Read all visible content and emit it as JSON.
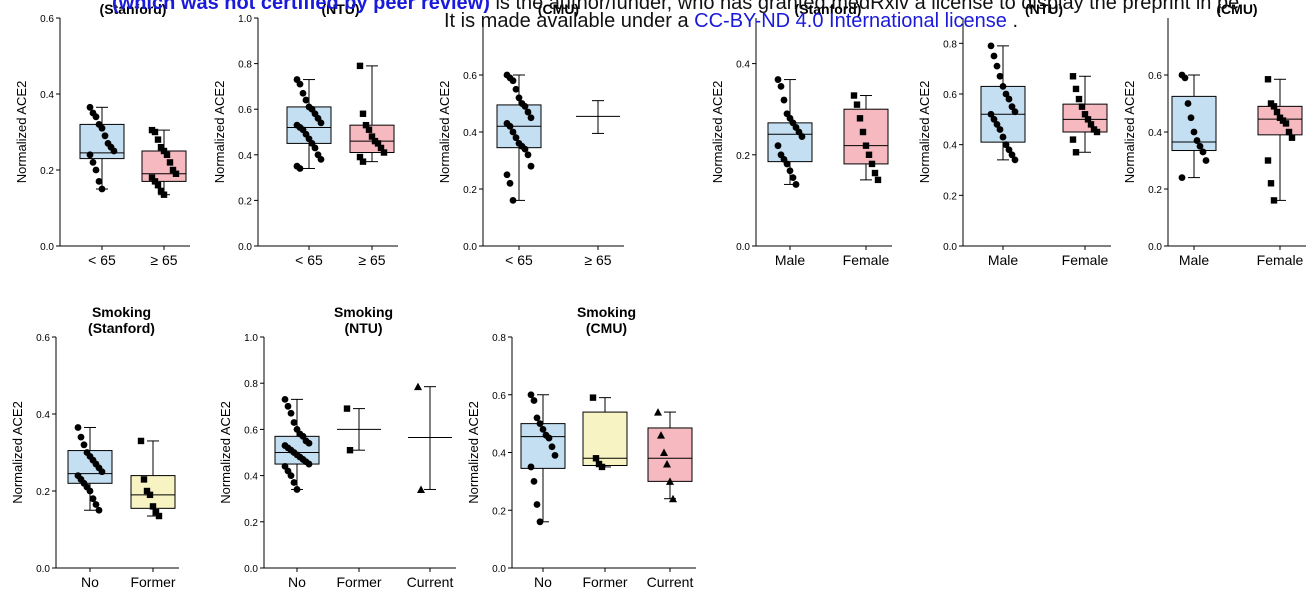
{
  "banner": {
    "line1_bold": "(which was not certified by peer review)",
    "line1_rest": " is the author/funder, who has granted medRxiv a license to display the preprint in pe",
    "line2_pre": "It is made available under a ",
    "line2_link": "CC-BY-ND 4.0 International license",
    "line2_post": " ."
  },
  "colors": {
    "blue": "#c5dff2",
    "pink": "#f5b9bf",
    "yellow": "#f7f3c2",
    "stroke": "#000000"
  },
  "chart_data": [
    {
      "type": "box",
      "title": "(Stanford)",
      "ylabel": "Normalized ACE2",
      "ylim": [
        0,
        0.6
      ],
      "yticks": [
        0.0,
        0.2,
        0.4,
        0.6
      ],
      "ytick_labels": [
        "0.0",
        "0.2",
        "0.4",
        "0.6"
      ],
      "categories": [
        "< 65",
        "≥ 65"
      ],
      "groups": [
        {
          "color": "blue",
          "marker": "circle",
          "whisker": [
            0.15,
            0.365
          ],
          "box": [
            0.23,
            0.32
          ],
          "median": 0.245,
          "points": [
            0.365,
            0.35,
            0.34,
            0.32,
            0.31,
            0.29,
            0.27,
            0.26,
            0.25,
            0.24,
            0.22,
            0.2,
            0.17,
            0.15
          ]
        },
        {
          "color": "pink",
          "marker": "square",
          "whisker": [
            0.135,
            0.305
          ],
          "box": [
            0.17,
            0.25
          ],
          "median": 0.19,
          "points": [
            0.305,
            0.3,
            0.28,
            0.26,
            0.25,
            0.24,
            0.22,
            0.2,
            0.19,
            0.18,
            0.17,
            0.16,
            0.145,
            0.135
          ]
        }
      ]
    },
    {
      "type": "box",
      "title": "(NTU)",
      "ylabel": "Normalized ACE2",
      "ylim": [
        0,
        1.0
      ],
      "yticks": [
        0.0,
        0.2,
        0.4,
        0.6,
        0.8,
        1.0
      ],
      "ytick_labels": [
        "0.0",
        "0.2",
        "0.4",
        "0.6",
        "0.8",
        "1.0"
      ],
      "categories": [
        "< 65",
        "≥ 65"
      ],
      "groups": [
        {
          "color": "blue",
          "marker": "circle",
          "whisker": [
            0.34,
            0.73
          ],
          "box": [
            0.45,
            0.61
          ],
          "median": 0.52,
          "points": [
            0.73,
            0.71,
            0.67,
            0.64,
            0.61,
            0.6,
            0.58,
            0.56,
            0.54,
            0.53,
            0.52,
            0.51,
            0.49,
            0.47,
            0.45,
            0.43,
            0.4,
            0.38,
            0.35,
            0.34
          ]
        },
        {
          "color": "pink",
          "marker": "square",
          "whisker": [
            0.37,
            0.79
          ],
          "box": [
            0.41,
            0.53
          ],
          "median": 0.46,
          "points": [
            0.79,
            0.58,
            0.53,
            0.51,
            0.48,
            0.46,
            0.45,
            0.43,
            0.41,
            0.39,
            0.37
          ]
        }
      ]
    },
    {
      "type": "box",
      "title": "(CMU)",
      "ylabel": "Normalized ACE2",
      "ylim": [
        0,
        0.8
      ],
      "yticks": [
        0.0,
        0.2,
        0.4,
        0.6
      ],
      "ytick_labels": [
        "0.0",
        "0.2",
        "0.4",
        "0.6"
      ],
      "categories": [
        "< 65",
        "≥ 65"
      ],
      "groups": [
        {
          "color": "blue",
          "marker": "circle",
          "whisker": [
            0.16,
            0.6
          ],
          "box": [
            0.345,
            0.495
          ],
          "median": 0.42,
          "points": [
            0.6,
            0.59,
            0.58,
            0.55,
            0.52,
            0.5,
            0.49,
            0.47,
            0.45,
            0.43,
            0.42,
            0.4,
            0.38,
            0.36,
            0.35,
            0.34,
            0.32,
            0.28,
            0.25,
            0.22,
            0.16
          ]
        },
        {
          "color": "none",
          "marker": "none",
          "whisker": [
            0.395,
            0.51
          ],
          "median": 0.455,
          "points": []
        }
      ]
    },
    {
      "type": "box",
      "title": "(Stanford)",
      "ylabel": "Normalized ACE2",
      "ylim": [
        0,
        0.5
      ],
      "yticks": [
        0.0,
        0.2,
        0.4
      ],
      "ytick_labels": [
        "0.0",
        "0.2",
        "0.4"
      ],
      "categories": [
        "Male",
        "Female"
      ],
      "groups": [
        {
          "color": "blue",
          "marker": "circle",
          "whisker": [
            0.135,
            0.365
          ],
          "box": [
            0.185,
            0.27
          ],
          "median": 0.245,
          "points": [
            0.365,
            0.35,
            0.32,
            0.29,
            0.28,
            0.27,
            0.26,
            0.25,
            0.24,
            0.22,
            0.2,
            0.19,
            0.18,
            0.165,
            0.15,
            0.135
          ]
        },
        {
          "color": "pink",
          "marker": "square",
          "whisker": [
            0.145,
            0.33
          ],
          "box": [
            0.18,
            0.3
          ],
          "median": 0.22,
          "points": [
            0.33,
            0.31,
            0.28,
            0.25,
            0.22,
            0.2,
            0.18,
            0.16,
            0.145
          ]
        }
      ]
    },
    {
      "type": "box",
      "title": "(NTU)",
      "ylabel": "Normalized ACE2",
      "ylim": [
        0,
        0.9
      ],
      "yticks": [
        0.0,
        0.2,
        0.4,
        0.6,
        0.8
      ],
      "ytick_labels": [
        "0.0",
        "0.2",
        "0.4",
        "0.6",
        "0.8"
      ],
      "categories": [
        "Male",
        "Female"
      ],
      "groups": [
        {
          "color": "blue",
          "marker": "circle",
          "whisker": [
            0.34,
            0.79
          ],
          "box": [
            0.41,
            0.63
          ],
          "median": 0.52,
          "points": [
            0.79,
            0.75,
            0.71,
            0.67,
            0.63,
            0.6,
            0.58,
            0.55,
            0.53,
            0.52,
            0.5,
            0.48,
            0.46,
            0.43,
            0.4,
            0.38,
            0.36,
            0.34
          ]
        },
        {
          "color": "pink",
          "marker": "square",
          "whisker": [
            0.37,
            0.67
          ],
          "box": [
            0.45,
            0.56
          ],
          "median": 0.5,
          "points": [
            0.67,
            0.62,
            0.58,
            0.55,
            0.52,
            0.5,
            0.48,
            0.46,
            0.45,
            0.42,
            0.37
          ]
        }
      ]
    },
    {
      "type": "box",
      "title": "(CMU)",
      "ylabel": "Normalized ACE2",
      "ylim": [
        0,
        0.8
      ],
      "yticks": [
        0.0,
        0.2,
        0.4,
        0.6
      ],
      "ytick_labels": [
        "0.0",
        "0.2",
        "0.4",
        "0.6"
      ],
      "categories": [
        "Male",
        "Female"
      ],
      "groups": [
        {
          "color": "blue",
          "marker": "circle",
          "whisker": [
            0.24,
            0.6
          ],
          "box": [
            0.335,
            0.525
          ],
          "median": 0.365,
          "points": [
            0.6,
            0.59,
            0.5,
            0.45,
            0.4,
            0.37,
            0.35,
            0.33,
            0.3,
            0.24
          ]
        },
        {
          "color": "pink",
          "marker": "square",
          "whisker": [
            0.16,
            0.585
          ],
          "box": [
            0.39,
            0.49
          ],
          "median": 0.445,
          "points": [
            0.585,
            0.5,
            0.49,
            0.47,
            0.45,
            0.44,
            0.43,
            0.4,
            0.38,
            0.3,
            0.22,
            0.16
          ]
        }
      ]
    },
    {
      "type": "box",
      "title": "Smoking\n(Stanford)",
      "ylabel": "Normalized ACE2",
      "ylim": [
        0,
        0.6
      ],
      "yticks": [
        0.0,
        0.2,
        0.4,
        0.6
      ],
      "ytick_labels": [
        "0.0",
        "0.2",
        "0.4",
        "0.6"
      ],
      "categories": [
        "No",
        "Former"
      ],
      "groups": [
        {
          "color": "blue",
          "marker": "circle",
          "whisker": [
            0.15,
            0.365
          ],
          "box": [
            0.22,
            0.305
          ],
          "median": 0.245,
          "points": [
            0.365,
            0.34,
            0.32,
            0.3,
            0.29,
            0.28,
            0.27,
            0.26,
            0.25,
            0.24,
            0.23,
            0.22,
            0.21,
            0.2,
            0.18,
            0.165,
            0.15
          ]
        },
        {
          "color": "yellow",
          "marker": "square",
          "whisker": [
            0.135,
            0.33
          ],
          "box": [
            0.155,
            0.24
          ],
          "median": 0.19,
          "points": [
            0.33,
            0.23,
            0.2,
            0.19,
            0.16,
            0.145,
            0.135
          ]
        }
      ]
    },
    {
      "type": "box",
      "title": "Smoking\n(NTU)",
      "ylabel": "Normalized ACE2",
      "ylim": [
        0,
        1.0
      ],
      "yticks": [
        0.0,
        0.2,
        0.4,
        0.6,
        0.8,
        1.0
      ],
      "ytick_labels": [
        "0.0",
        "0.2",
        "0.4",
        "0.6",
        "0.8",
        "1.0"
      ],
      "categories": [
        "No",
        "Former",
        "Current"
      ],
      "groups": [
        {
          "color": "blue",
          "marker": "circle",
          "whisker": [
            0.34,
            0.73
          ],
          "box": [
            0.45,
            0.57
          ],
          "median": 0.5,
          "points": [
            0.73,
            0.7,
            0.67,
            0.63,
            0.6,
            0.58,
            0.57,
            0.55,
            0.54,
            0.53,
            0.52,
            0.51,
            0.5,
            0.49,
            0.48,
            0.47,
            0.46,
            0.45,
            0.44,
            0.42,
            0.4,
            0.37,
            0.34
          ]
        },
        {
          "color": "none",
          "marker": "square",
          "whisker": [
            0.51,
            0.69
          ],
          "median": 0.6,
          "points": [
            0.69,
            0.51
          ]
        },
        {
          "color": "none",
          "marker": "triangle",
          "whisker": [
            0.34,
            0.785
          ],
          "median": 0.565,
          "points": [
            0.785,
            0.34
          ]
        }
      ]
    },
    {
      "type": "box",
      "title": "Smoking\n(CMU)",
      "ylabel": "Normalized ACE2",
      "ylim": [
        0,
        0.8
      ],
      "yticks": [
        0.0,
        0.2,
        0.4,
        0.6,
        0.8
      ],
      "ytick_labels": [
        "0.0",
        "0.2",
        "0.4",
        "0.6",
        "0.8"
      ],
      "categories": [
        "No",
        "Former",
        "Current"
      ],
      "groups": [
        {
          "color": "blue",
          "marker": "circle",
          "whisker": [
            0.16,
            0.6
          ],
          "box": [
            0.345,
            0.5
          ],
          "median": 0.455,
          "points": [
            0.6,
            0.58,
            0.52,
            0.5,
            0.48,
            0.46,
            0.45,
            0.42,
            0.39,
            0.35,
            0.3,
            0.22,
            0.16
          ]
        },
        {
          "color": "yellow",
          "marker": "square",
          "whisker": [
            0.35,
            0.59
          ],
          "box": [
            0.355,
            0.54
          ],
          "median": 0.38,
          "points": [
            0.59,
            0.38,
            0.36,
            0.35
          ]
        },
        {
          "color": "pink",
          "marker": "triangle",
          "whisker": [
            0.24,
            0.54
          ],
          "box": [
            0.3,
            0.485
          ],
          "median": 0.38,
          "points": [
            0.54,
            0.46,
            0.4,
            0.36,
            0.3,
            0.24
          ]
        }
      ]
    }
  ]
}
